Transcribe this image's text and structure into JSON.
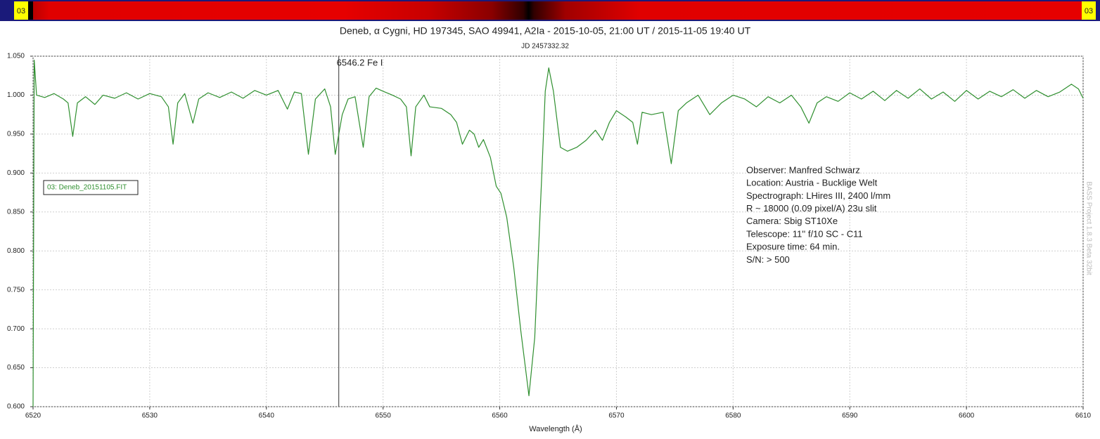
{
  "strip_labels": [
    "03",
    "03"
  ],
  "chart_data": {
    "type": "line",
    "title": "Deneb, α Cygni, HD 197345, SAO 49941, A2Ia - 2015-10-05, 21:00 UT / 2015-11-05 19:40 UT",
    "subtitle": "JD 2457332.32",
    "xlabel": "Wavelength (Å)",
    "watermark": "BASS Project 1.8.3 Beta 32bit",
    "marker": {
      "x": 6546.2,
      "label": "6546.2 Fe I"
    },
    "annotations": [
      "Observer: Manfred Schwarz",
      "Location: Austria - Bucklige Welt",
      "Spectrograph: LHires III, 2400 l/mm",
      "R ~ 18000 (0.09 pixel/A) 23u slit",
      "Camera: Sbig ST10Xe",
      "Telescope: 11'' f/10 SC - C11",
      "Exposure time: 64 min.",
      "S/N:  > 500"
    ],
    "grid": true,
    "xlim": [
      6520,
      6610
    ],
    "xticks": [
      6520,
      6530,
      6540,
      6550,
      6560,
      6570,
      6580,
      6590,
      6600,
      6610
    ],
    "ylim": [
      0.6,
      1.05
    ],
    "yticks": [
      {
        "value": 0.6,
        "label": "0.600"
      },
      {
        "value": 0.65,
        "label": "0.650"
      },
      {
        "value": 0.7,
        "label": "0.700"
      },
      {
        "value": 0.75,
        "label": "0.750"
      },
      {
        "value": 0.8,
        "label": "0.800"
      },
      {
        "value": 0.85,
        "label": "0.850"
      },
      {
        "value": 0.9,
        "label": "0.900"
      },
      {
        "value": 0.95,
        "label": "0.950"
      },
      {
        "value": 1.0,
        "label": "1.000"
      },
      {
        "value": 1.05,
        "label": "1.050"
      }
    ],
    "x": [
      6520.0,
      6520.1,
      6520.3,
      6521.0,
      6521.8,
      6522.6,
      6523.0,
      6523.4,
      6523.8,
      6524.5,
      6525.3,
      6526.0,
      6527.0,
      6528.0,
      6529.0,
      6530.0,
      6531.0,
      6531.6,
      6532.0,
      6532.4,
      6533.0,
      6533.7,
      6534.2,
      6535.0,
      6536.0,
      6537.0,
      6538.0,
      6539.0,
      6540.0,
      6541.0,
      6541.8,
      6542.4,
      6543.0,
      6543.6,
      6544.2,
      6545.0,
      6545.5,
      6545.9,
      6546.5,
      6547.0,
      6547.6,
      6548.3,
      6548.8,
      6549.4,
      6550.0,
      6550.8,
      6551.5,
      6552.0,
      6552.4,
      6552.8,
      6553.5,
      6554.0,
      6555.0,
      6555.8,
      6556.3,
      6556.8,
      6557.4,
      6557.8,
      6558.2,
      6558.6,
      6559.2,
      6559.7,
      6560.1,
      6560.6,
      6561.2,
      6561.8,
      6562.5,
      6563.0,
      6563.6,
      6563.9,
      6564.2,
      6564.6,
      6565.2,
      6565.8,
      6566.6,
      6567.4,
      6568.2,
      6568.8,
      6569.4,
      6570.0,
      6570.8,
      6571.4,
      6571.8,
      6572.2,
      6573.0,
      6574.0,
      6574.7,
      6575.3,
      6576.0,
      6577.0,
      6578.0,
      6579.0,
      6580.0,
      6581.0,
      6582.0,
      6583.0,
      6584.0,
      6585.0,
      6585.8,
      6586.5,
      6587.2,
      6588.0,
      6589.0,
      6590.0,
      6591.0,
      6592.0,
      6593.0,
      6594.0,
      6595.0,
      6596.0,
      6597.0,
      6598.0,
      6599.0,
      6600.0,
      6601.0,
      6602.0,
      6603.0,
      6604.0,
      6605.0,
      6606.0,
      6607.0,
      6608.0,
      6609.0,
      6609.6,
      6610.0
    ],
    "series": [
      {
        "name": "03: Deneb_20151105.FIT",
        "color": "#2f8f2f",
        "values": [
          0.6,
          1.045,
          1.0,
          0.997,
          1.002,
          0.995,
          0.99,
          0.947,
          0.99,
          0.998,
          0.988,
          1.0,
          0.996,
          1.003,
          0.995,
          1.002,
          0.998,
          0.985,
          0.937,
          0.99,
          1.002,
          0.964,
          0.995,
          1.003,
          0.997,
          1.004,
          0.996,
          1.006,
          1.0,
          1.006,
          0.982,
          1.004,
          1.002,
          0.924,
          0.995,
          1.008,
          0.985,
          0.924,
          0.975,
          0.995,
          0.998,
          0.933,
          0.998,
          1.009,
          1.005,
          1.0,
          0.995,
          0.985,
          0.922,
          0.985,
          1.0,
          0.985,
          0.983,
          0.975,
          0.965,
          0.937,
          0.955,
          0.95,
          0.933,
          0.943,
          0.92,
          0.883,
          0.874,
          0.843,
          0.779,
          0.698,
          0.614,
          0.689,
          0.897,
          1.005,
          1.035,
          1.005,
          0.933,
          0.928,
          0.933,
          0.942,
          0.955,
          0.942,
          0.965,
          0.98,
          0.972,
          0.965,
          0.937,
          0.978,
          0.975,
          0.978,
          0.912,
          0.98,
          0.99,
          1.0,
          0.975,
          0.99,
          1.0,
          0.995,
          0.985,
          0.998,
          0.99,
          1.0,
          0.985,
          0.964,
          0.99,
          0.998,
          0.992,
          1.003,
          0.995,
          1.005,
          0.993,
          1.006,
          0.996,
          1.008,
          0.995,
          1.004,
          0.992,
          1.006,
          0.995,
          1.005,
          0.998,
          1.007,
          0.996,
          1.006,
          0.998,
          1.004,
          1.014,
          1.008,
          0.996
        ]
      }
    ]
  }
}
